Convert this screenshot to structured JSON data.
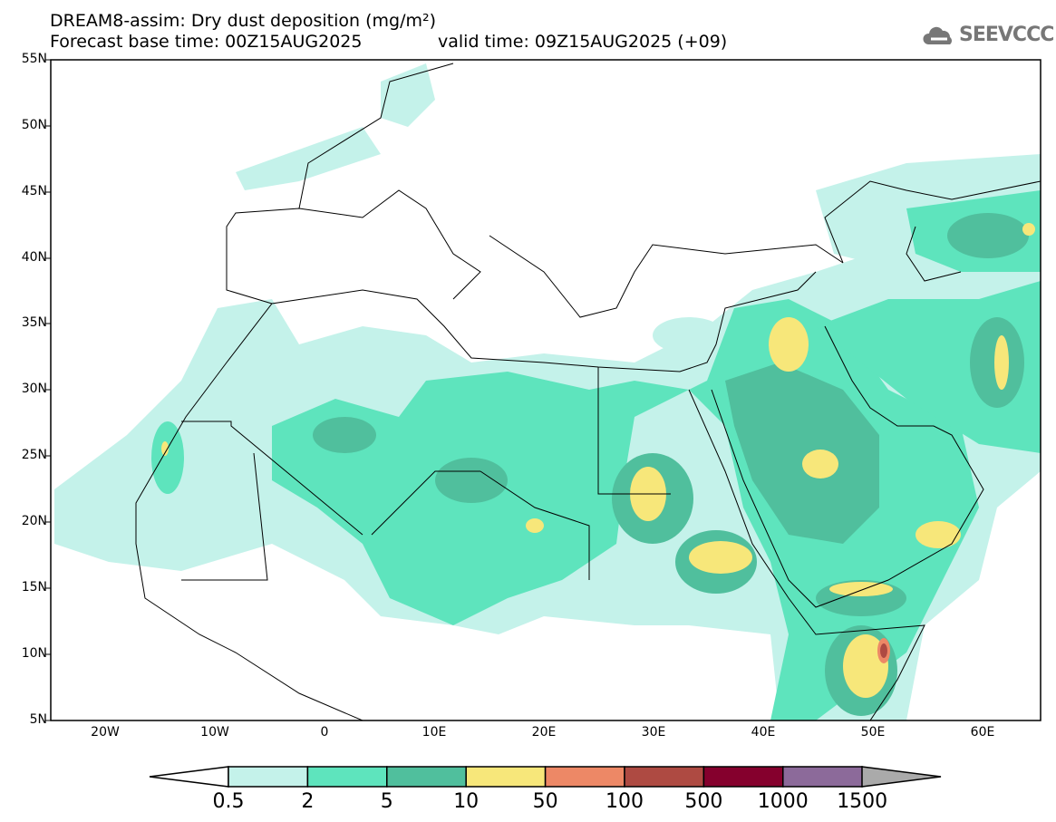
{
  "header": {
    "title": "DREAM8-assim: Dry dust deposition (mg/m²)",
    "base_time": "Forecast base time: 00Z15AUG2025",
    "valid_time": "valid time: 09Z15AUG2025 (+09)"
  },
  "logo": {
    "text": "SEEVCCC",
    "icon": "cloud-icon"
  },
  "axes": {
    "lat_labels": [
      "55N",
      "50N",
      "45N",
      "40N",
      "35N",
      "30N",
      "25N",
      "20N",
      "15N",
      "10N",
      "5N"
    ],
    "lon_labels": [
      "20W",
      "10W",
      "0",
      "10E",
      "20E",
      "30E",
      "40E",
      "50E",
      "60E"
    ]
  },
  "legend": {
    "labels": [
      "0.5",
      "2",
      "5",
      "10",
      "50",
      "100",
      "500",
      "1000",
      "1500"
    ],
    "colors": [
      "#c4f2ea",
      "#5ee4bd",
      "#50bf9d",
      "#f7e77a",
      "#ed8866",
      "#ae4a42",
      "#85002d",
      "#8c6a9a"
    ],
    "over_color": "#aaaaaa",
    "under_color": "#ffffff"
  }
}
